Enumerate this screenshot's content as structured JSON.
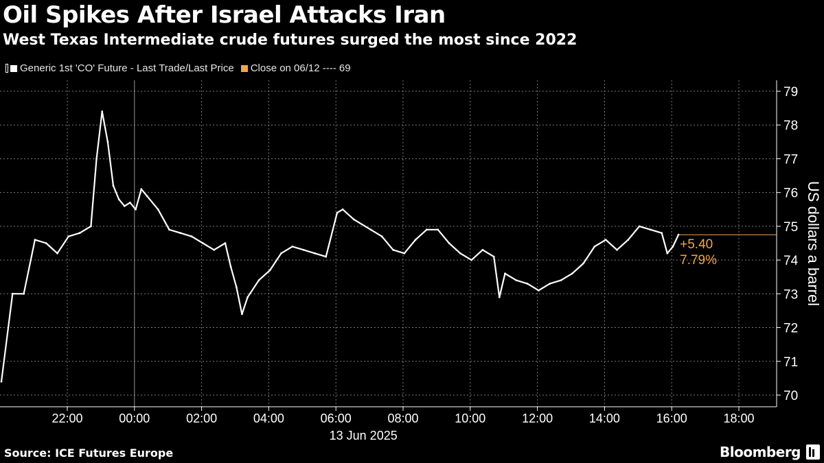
{
  "header": {
    "title": "Oil Spikes After Israel Attacks Iran",
    "subtitle": "West Texas Intermediate crude futures surged the most since 2022"
  },
  "legend": {
    "series_label": "Generic 1st 'CO' Future - Last Trade/Last Price",
    "close_label": "Close on 06/12 ---- 69"
  },
  "footer": {
    "source": "Source: ICE Futures Europe",
    "brand": "Bloomberg"
  },
  "colors": {
    "background": "#000000",
    "series": "#ffffff",
    "accent": "#f5a54a",
    "grid": "#9a9a9a"
  },
  "icons": [
    "chart-series-icon",
    "bloomberg-logo-icon"
  ],
  "chart_data": {
    "type": "line",
    "title": "Oil Spikes After Israel Attacks Iran",
    "subtitle": "West Texas Intermediate crude futures surged the most since 2022",
    "ylabel": "US dollars a barrel",
    "xlabel": "",
    "ylim": [
      70,
      79
    ],
    "y_ticks": [
      70,
      71,
      72,
      73,
      74,
      75,
      76,
      77,
      78,
      79
    ],
    "x_tick_labels": [
      "22:00",
      "00:00",
      "02:00",
      "04:00",
      "06:00",
      "08:00",
      "10:00",
      "12:00",
      "14:00",
      "16:00",
      "18:00"
    ],
    "date_label": "13 Jun 2025",
    "grid": true,
    "y_axis_side": "right",
    "legend_position": "top-left",
    "annotations": {
      "change": "+5.40",
      "change_pct": "7.79%"
    },
    "last_value": 74.75,
    "series": [
      {
        "name": "Generic 1st 'CO' Future - Last Trade/Last Price",
        "x": [
          "20:00",
          "20:20",
          "20:40",
          "21:00",
          "21:20",
          "21:40",
          "22:00",
          "22:20",
          "22:40",
          "22:50",
          "23:00",
          "23:10",
          "23:20",
          "23:30",
          "23:40",
          "23:50",
          "00:00",
          "00:10",
          "00:20",
          "00:40",
          "01:00",
          "01:20",
          "01:40",
          "02:00",
          "02:20",
          "02:40",
          "02:50",
          "03:00",
          "03:10",
          "03:20",
          "03:40",
          "04:00",
          "04:20",
          "04:40",
          "05:00",
          "05:20",
          "05:40",
          "06:00",
          "06:10",
          "06:30",
          "07:00",
          "07:20",
          "07:40",
          "08:00",
          "08:20",
          "08:40",
          "09:00",
          "09:20",
          "09:40",
          "10:00",
          "10:20",
          "10:40",
          "10:50",
          "11:00",
          "11:20",
          "11:40",
          "12:00",
          "12:20",
          "12:40",
          "13:00",
          "13:20",
          "13:40",
          "14:00",
          "14:20",
          "14:40",
          "15:00",
          "15:20",
          "15:40",
          "15:50",
          "16:00",
          "16:10"
        ],
        "values": [
          70.4,
          73.0,
          73.0,
          74.6,
          74.5,
          74.2,
          74.7,
          74.8,
          75.0,
          77.0,
          78.4,
          77.5,
          76.2,
          75.8,
          75.6,
          75.7,
          75.5,
          76.1,
          75.9,
          75.5,
          74.9,
          74.8,
          74.7,
          74.5,
          74.3,
          74.5,
          73.8,
          73.2,
          72.4,
          72.9,
          73.4,
          73.7,
          74.2,
          74.4,
          74.3,
          74.2,
          74.1,
          75.4,
          75.5,
          75.2,
          74.9,
          74.7,
          74.3,
          74.2,
          74.6,
          74.9,
          74.9,
          74.5,
          74.2,
          74.0,
          74.3,
          74.1,
          72.9,
          73.6,
          73.4,
          73.3,
          73.1,
          73.3,
          73.4,
          73.6,
          73.9,
          74.4,
          74.6,
          74.3,
          74.6,
          75.0,
          74.9,
          74.8,
          74.2,
          74.4,
          74.75
        ]
      }
    ]
  }
}
